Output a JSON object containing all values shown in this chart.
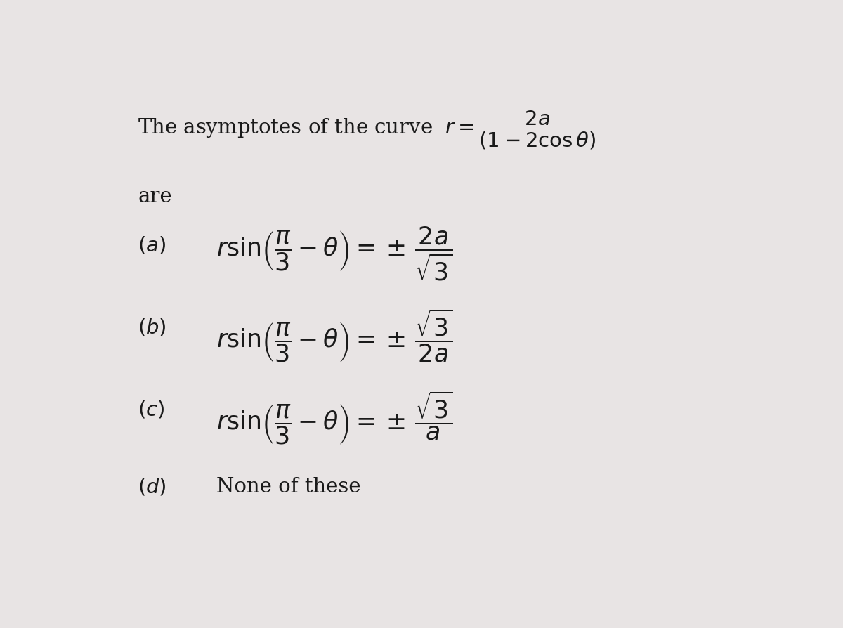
{
  "background_color": "#e8e4e4",
  "text_color": "#1a1a1a",
  "figwidth": 12.0,
  "figheight": 8.94,
  "title_plain": "The asymptotes of the curve  ",
  "are_text": "are",
  "option_d_text": "None of these"
}
